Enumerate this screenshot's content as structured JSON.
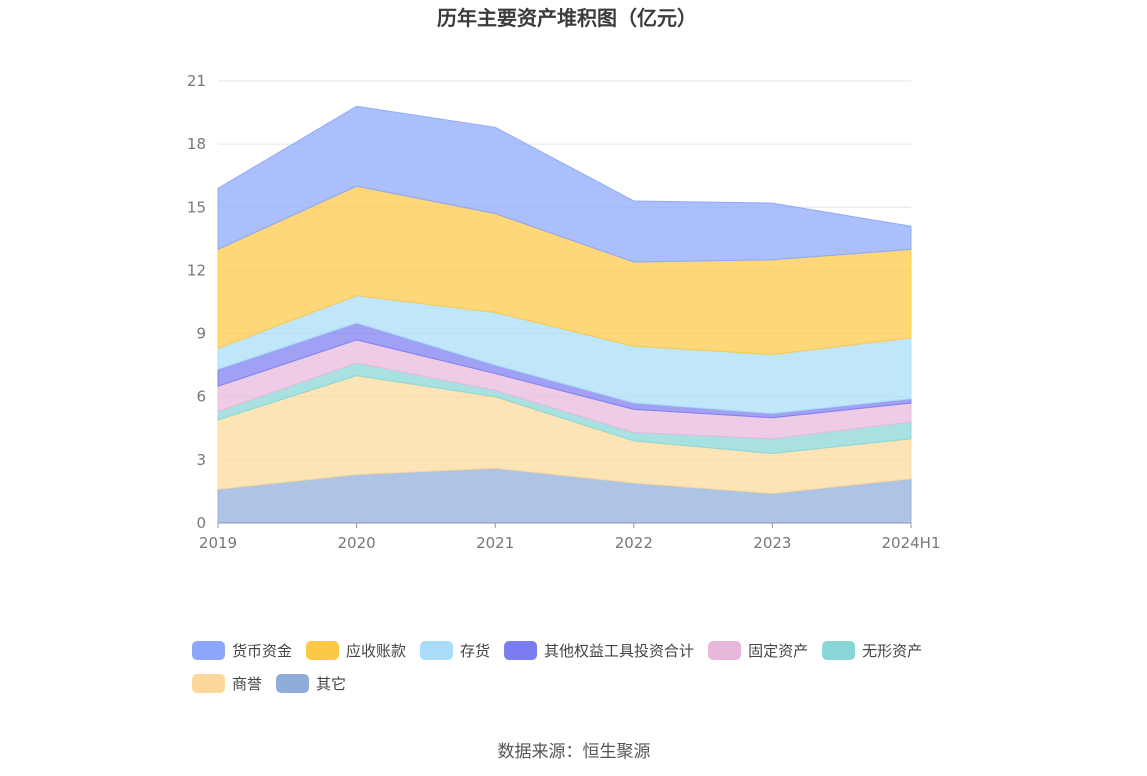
{
  "chart_data": {
    "type": "area",
    "stacked": true,
    "title": "历年主要资产堆积图（亿元）",
    "xlabel": "",
    "ylabel": "",
    "categories": [
      "2019",
      "2020",
      "2021",
      "2022",
      "2023",
      "2024H1"
    ],
    "ylim": [
      0,
      21
    ],
    "yticks": [
      0,
      3,
      6,
      9,
      12,
      15,
      18,
      21
    ],
    "grid": true,
    "legend_position": "bottom",
    "series": [
      {
        "name": "其它",
        "color": "#8fadd9",
        "values": [
          1.6,
          2.3,
          2.6,
          1.9,
          1.4,
          2.1
        ]
      },
      {
        "name": "商誉",
        "color": "#fcd99a",
        "values": [
          3.3,
          4.7,
          3.4,
          2.0,
          1.9,
          1.9
        ]
      },
      {
        "name": "无形资产",
        "color": "#88d6d7",
        "values": [
          0.4,
          0.6,
          0.3,
          0.4,
          0.7,
          0.8
        ]
      },
      {
        "name": "固定资产",
        "color": "#e8b8dc",
        "values": [
          1.2,
          1.1,
          0.8,
          1.1,
          1.0,
          0.9
        ]
      },
      {
        "name": "其他权益工具投资合计",
        "color": "#7b7cf0",
        "values": [
          0.8,
          0.8,
          0.4,
          0.3,
          0.2,
          0.2
        ]
      },
      {
        "name": "存货",
        "color": "#a8dcf8",
        "values": [
          1.0,
          1.3,
          2.5,
          2.7,
          2.8,
          2.9
        ]
      },
      {
        "name": "应收账款",
        "color": "#fdc844",
        "values": [
          4.7,
          5.2,
          4.7,
          4.0,
          4.5,
          4.2
        ]
      },
      {
        "name": "货币资金",
        "color": "#8ba6fb",
        "values": [
          2.9,
          3.8,
          4.1,
          2.9,
          2.7,
          1.1
        ]
      }
    ],
    "legend_order": [
      "货币资金",
      "应收账款",
      "存货",
      "其他权益工具投资合计",
      "固定资产",
      "无形资产",
      "商誉",
      "其它"
    ]
  },
  "source": "数据来源：恒生聚源"
}
